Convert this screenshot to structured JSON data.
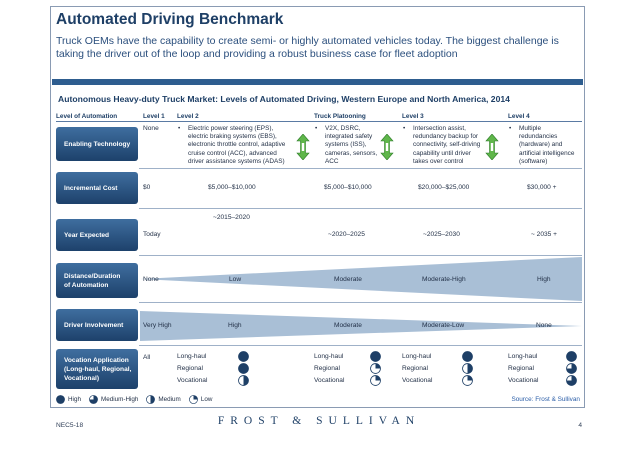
{
  "title": "Automated Driving Benchmark",
  "subtitle": "Truck OEMs have the capability to create semi- or highly automated vehicles today. The biggest challenge is taking the driver out of the loop and providing a robust business case for fleet adoption",
  "chart_title": "Autonomous Heavy-duty Truck Market: Levels of Automated Driving, Western Europe and North America, 2014",
  "headers": {
    "automation": "Level of Automation",
    "l1": "Level 1",
    "l2": "Level 2",
    "platoon": "Truck Platooning",
    "l3": "Level 3",
    "l4": "Level 4"
  },
  "rows": {
    "tech": {
      "label": "Enabling Technology",
      "l1": "None",
      "l2": [
        "Electric power steering (EPS),",
        "electric braking systems (EBS),",
        "electronic throttle control, adaptive",
        "cruise control (ACC), advanced",
        "driver assistance systems (ADAS)"
      ],
      "platoon": [
        "V2X, DSRC,",
        "integrated safety",
        "systems (ISS),",
        "cameras, sensors,",
        "ACC"
      ],
      "l3": [
        "Intersection assist,",
        "redundancy backup for",
        "connectivity, self-driving",
        "capability until driver",
        "takes over control"
      ],
      "l4": [
        "Multiple",
        "redundancies",
        "(hardware) and",
        "artificial intelligence",
        "(software)"
      ]
    },
    "cost": {
      "label": "Incremental Cost",
      "l1": "$0",
      "l2": "$5,000–$10,000",
      "platoon": "$5,000–$10,000",
      "l3": "$20,000–$25,000",
      "l4": "$30,000 +"
    },
    "year": {
      "label": "Year Expected",
      "l1": "Today",
      "l2": "~2015–2020",
      "platoon": "~2020–2025",
      "l3": "~2025–2030",
      "l4": "~ 2035 +"
    },
    "distance": {
      "label": [
        "Distance/Duration",
        "of Automation"
      ],
      "l1": "None",
      "l2": "Low",
      "platoon": "Moderate",
      "l3": "Moderate-High",
      "l4": "High"
    },
    "driver": {
      "label": "Driver Involvement",
      "l1": "Very High",
      "l2": "High",
      "platoon": "Moderate",
      "l3": "Moderate-Low",
      "l4": "None"
    },
    "vocation": {
      "label": [
        "Vocation Application",
        "(Long-haul, Regional,",
        "Vocational)"
      ],
      "l1": "All",
      "items": [
        "Long-haul",
        "Regional",
        "Vocational"
      ],
      "ratings": {
        "l2": [
          "high",
          "high",
          "medium"
        ],
        "platoon": [
          "high",
          "low",
          "low"
        ],
        "l3": [
          "high",
          "medium",
          "low"
        ],
        "l4": [
          "high",
          "medium-high",
          "medium-high"
        ]
      }
    }
  },
  "legend": {
    "high": "High",
    "medium_high": "Medium-High",
    "medium": "Medium",
    "low": "Low"
  },
  "source": "Source: Frost & Sullivan",
  "footer": {
    "code": "NEC5-18",
    "brand": "FROST & SULLIVAN",
    "page": "4"
  },
  "colors": {
    "navy": "#1e3f66",
    "accent": "#2e5d8f",
    "wedge": "#a9bfd6",
    "icon_green": "#5fb64a"
  },
  "icons": {
    "level_step": "up-down-arrow-icon",
    "rating": "harvey-ball-icon"
  }
}
